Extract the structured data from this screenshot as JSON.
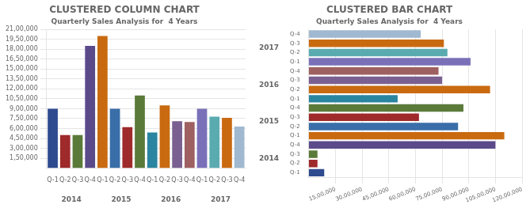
{
  "chart_data": [
    {
      "type": "bar",
      "title": "CLUSTERED COLUMN CHART",
      "subtitle": "Quarterly Sales Analysis for  4 Years",
      "categories": [
        "Q-1",
        "Q-2",
        "Q-3",
        "Q-4",
        "Q-1",
        "Q-2",
        "Q-3",
        "Q-4",
        "Q-1",
        "Q-2",
        "Q-3",
        "Q-4",
        "Q-1",
        "Q-2",
        "Q-3",
        "Q-4"
      ],
      "annotations": [
        "2014",
        "2015",
        "2016",
        "2017"
      ],
      "values": [
        900000,
        500000,
        500000,
        1850000,
        2000000,
        900000,
        620000,
        1100000,
        540000,
        950000,
        710000,
        700000,
        900000,
        780000,
        760000,
        630000
      ],
      "colors": [
        "#2E4B8F",
        "#9E2A2B",
        "#5A7A3A",
        "#5B4A8A",
        "#C96A10",
        "#3A6EA8",
        "#9E2A2B",
        "#5A7A3A",
        "#2A85A0",
        "#C96A10",
        "#7A6090",
        "#9E6060",
        "#7A70B8",
        "#5AABB0",
        "#C96A10",
        "#A0B8D0"
      ],
      "ylim": [
        0,
        2100000
      ],
      "yticks": [
        {
          "value": 150000,
          "label": "1,50,000"
        },
        {
          "value": 300000,
          "label": "3,00,000"
        },
        {
          "value": 450000,
          "label": "4,50,000"
        },
        {
          "value": 600000,
          "label": "6,00,000"
        },
        {
          "value": 750000,
          "label": "7,50,000"
        },
        {
          "value": 900000,
          "label": "9,00,000"
        },
        {
          "value": 1050000,
          "label": "10,50,000"
        },
        {
          "value": 1200000,
          "label": "12,00,000"
        },
        {
          "value": 1350000,
          "label": "13,50,000"
        },
        {
          "value": 1500000,
          "label": "15,00,000"
        },
        {
          "value": 1650000,
          "label": "16,50,000"
        },
        {
          "value": 1800000,
          "label": "18,00,000"
        },
        {
          "value": 1950000,
          "label": "19,50,000"
        },
        {
          "value": 2100000,
          "label": "21,00,000"
        }
      ],
      "grid": true
    },
    {
      "type": "bar",
      "title": "CLUSTERED BAR CHART",
      "subtitle": "Quarterly Sales Analysis for  4 Years",
      "orientation": "horizontal",
      "categories": [
        "Q-1",
        "Q-2",
        "Q-3",
        "Q-4",
        "Q-1",
        "Q-2",
        "Q-3",
        "Q-4",
        "Q-1",
        "Q-2",
        "Q-3",
        "Q-4",
        "Q-1",
        "Q-2",
        "Q-3",
        "Q-4"
      ],
      "annotations": [
        "2014",
        "2015",
        "2016",
        "2017"
      ],
      "values": [
        870000,
        490000,
        490000,
        10500000,
        11000000,
        8400000,
        6200000,
        8700000,
        5000000,
        10200000,
        7500000,
        7300000,
        9100000,
        7800000,
        7600000,
        6300000
      ],
      "colors": [
        "#2E4B8F",
        "#9E2A2B",
        "#5A7A3A",
        "#5B4A8A",
        "#C96A10",
        "#3A6EA8",
        "#9E2A2B",
        "#5A7A3A",
        "#2A85A0",
        "#C96A10",
        "#7A6090",
        "#9E6060",
        "#7A70B8",
        "#5AABB0",
        "#C96A10",
        "#A0B8D0"
      ],
      "xlim": [
        0,
        12000000
      ],
      "xticks": [
        {
          "value": 1500000,
          "label": "15,00,000"
        },
        {
          "value": 3000000,
          "label": "30,00,000"
        },
        {
          "value": 4500000,
          "label": "45,00,000"
        },
        {
          "value": 6000000,
          "label": "60,00,000"
        },
        {
          "value": 7500000,
          "label": "75,00,000"
        },
        {
          "value": 9000000,
          "label": "90,00,000"
        },
        {
          "value": 10500000,
          "label": "105,00,000"
        },
        {
          "value": 12000000,
          "label": "120,00,000"
        }
      ],
      "grid": true
    }
  ]
}
